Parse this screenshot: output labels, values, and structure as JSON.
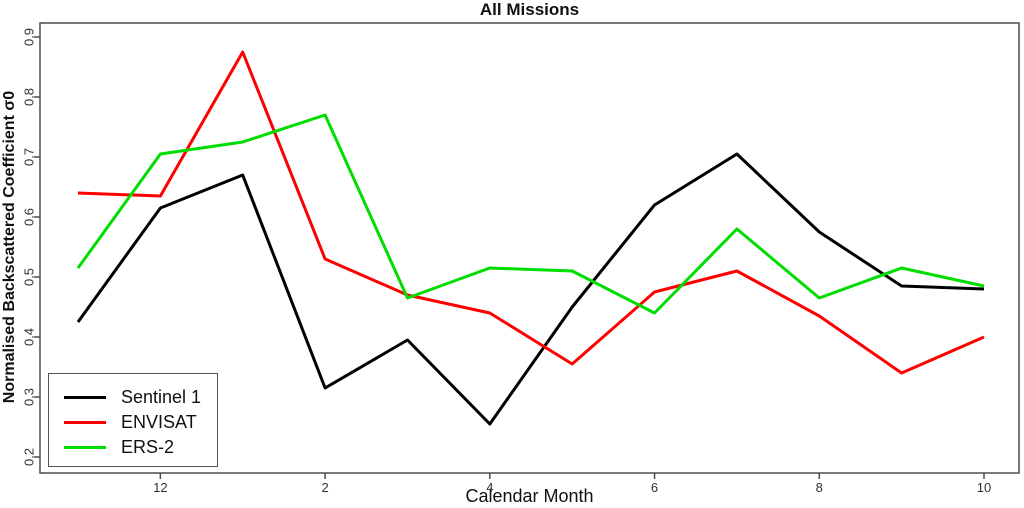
{
  "title": "All Missions",
  "axes": {
    "frame_color": "#4d4d4d",
    "tick_color": "#4d4d4d",
    "tick_text_color": "#333333"
  },
  "chart_data": {
    "type": "line",
    "title": "All Missions",
    "xlabel": "Calendar Month",
    "ylabel": "Normalised Backscattered Coefficient σ0",
    "x_month_sequence": [
      11,
      12,
      1,
      2,
      3,
      4,
      5,
      6,
      7,
      8,
      9,
      10
    ],
    "xtick_labels": [
      "12",
      "2",
      "4",
      "6",
      "8",
      "10"
    ],
    "xtick_months": [
      12,
      2,
      4,
      6,
      8,
      10
    ],
    "ytick_labels": [
      "0.9",
      "0.8",
      "0.7",
      "0.6",
      "0.5",
      "0.4",
      "0.3",
      "0.2"
    ],
    "ytick_values": [
      0.9,
      0.8,
      0.7,
      0.6,
      0.5,
      0.4,
      0.3,
      0.2
    ],
    "ylim": [
      0.175,
      0.925
    ],
    "grid": false,
    "legend_position": "bottom-left",
    "series": [
      {
        "name": "Sentinel 1",
        "color": "#000000",
        "values": [
          0.425,
          0.615,
          0.67,
          0.315,
          0.395,
          0.255,
          0.45,
          0.62,
          0.705,
          0.575,
          0.485,
          0.48
        ]
      },
      {
        "name": "ENVISAT",
        "color": "#ff0000",
        "values": [
          0.64,
          0.635,
          0.875,
          0.53,
          0.47,
          0.44,
          0.355,
          0.475,
          0.51,
          0.435,
          0.34,
          0.4
        ]
      },
      {
        "name": "ERS-2",
        "color": "#00dd00",
        "values": [
          0.515,
          0.705,
          0.725,
          0.77,
          0.465,
          0.515,
          0.51,
          0.44,
          0.58,
          0.465,
          0.515,
          0.485
        ]
      }
    ]
  }
}
